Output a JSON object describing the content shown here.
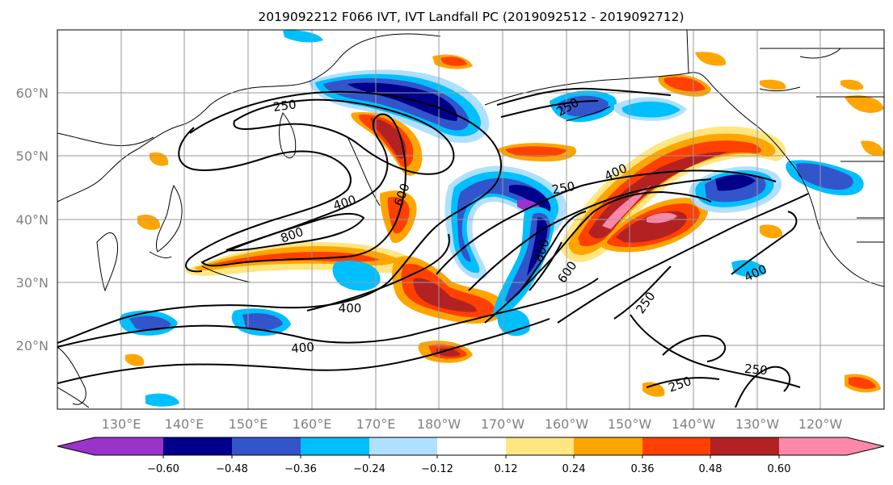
{
  "map": {
    "title": "2019092212 F066 IVT, IVT Landfall PC (2019092512 - 2019092712)",
    "lat_labels": [
      "60°N",
      "50°N",
      "40°N",
      "30°N",
      "20°N"
    ],
    "lon_labels": [
      "130°E",
      "140°E",
      "150°E",
      "160°E",
      "170°E",
      "180°W",
      "170°W",
      "160°W",
      "150°W",
      "140°W",
      "130°W",
      "120°W"
    ],
    "lat_range": [
      10,
      70
    ],
    "lon_range_east": [
      120,
      250
    ],
    "contour_labels": [
      "250",
      "400",
      "800",
      "600",
      "400",
      "250",
      "400",
      "800",
      "600",
      "400",
      "250",
      "250",
      "250",
      "400",
      "250"
    ],
    "colorbar": {
      "ticks": [
        "−0.60",
        "−0.48",
        "−0.36",
        "−0.24",
        "−0.12",
        "0.12",
        "0.24",
        "0.36",
        "0.48",
        "0.60"
      ],
      "colors": [
        "#9933cc",
        "#00008b",
        "#3355cc",
        "#00bfff",
        "#b0e0ff",
        "#ffffff",
        "#ffe680",
        "#ffa500",
        "#ff4000",
        "#b22222",
        "#ff88aa"
      ]
    }
  }
}
